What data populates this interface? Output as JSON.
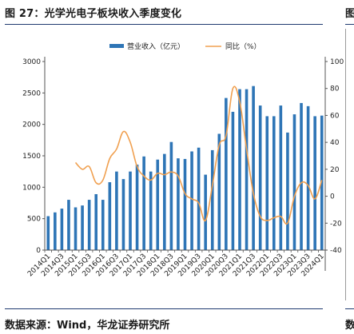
{
  "figure": {
    "title": "图 27：光学光电子板块收入季度变化",
    "next_title_fragment": "图",
    "source": "数据来源：Wind，华龙证券研究所",
    "next_source_fragment": "数"
  },
  "chart_data": {
    "type": "bar",
    "categories": [
      "2014Q1",
      "2014Q2",
      "2014Q3",
      "2014Q4",
      "2015Q1",
      "2015Q2",
      "2015Q3",
      "2015Q4",
      "2016Q1",
      "2016Q2",
      "2016Q3",
      "2016Q4",
      "2017Q1",
      "2017Q2",
      "2017Q3",
      "2017Q4",
      "2018Q1",
      "2018Q2",
      "2018Q3",
      "2018Q4",
      "2019Q1",
      "2019Q2",
      "2019Q3",
      "2019Q4",
      "2020Q1",
      "2020Q2",
      "2020Q3",
      "2020Q4",
      "2021Q1",
      "2021Q2",
      "2021Q3",
      "2021Q4",
      "2022Q1",
      "2022Q2",
      "2022Q3",
      "2022Q4",
      "2023Q1",
      "2023Q2",
      "2023Q3",
      "2023Q4",
      "2024Q1"
    ],
    "tick_labels": [
      "2014Q1",
      "2014Q3",
      "2015Q1",
      "2015Q3",
      "2016Q1",
      "2016Q3",
      "2017Q1",
      "2017Q3",
      "2018Q1",
      "2018Q3",
      "2019Q1",
      "2019Q3",
      "2020Q1",
      "2020Q3",
      "2021Q1",
      "2021Q3",
      "2022Q1",
      "2022Q3",
      "2023Q1",
      "2023Q3",
      "2024Q1"
    ],
    "series": [
      {
        "name": "营业收入（亿元）",
        "axis": "left",
        "kind": "bar",
        "color": "#2e75b6",
        "values": [
          540,
          600,
          660,
          800,
          680,
          710,
          800,
          890,
          800,
          1080,
          1250,
          1130,
          1250,
          1360,
          1490,
          1250,
          1440,
          1530,
          1720,
          1460,
          1450,
          1570,
          1630,
          1200,
          1590,
          1850,
          2420,
          2200,
          2560,
          2560,
          2610,
          2300,
          2130,
          2130,
          2300,
          1870,
          2160,
          2340,
          2290,
          2130,
          2140
        ]
      },
      {
        "name": "同比（%）",
        "axis": "right",
        "kind": "line",
        "color": "#f0a050",
        "values": [
          null,
          null,
          null,
          null,
          25,
          20,
          22,
          10,
          12,
          28,
          35,
          48,
          40,
          22,
          15,
          12,
          17,
          16,
          18,
          15,
          2,
          -2,
          -5,
          -18,
          8,
          38,
          45,
          80,
          70,
          35,
          2,
          -15,
          -18,
          -16,
          -15,
          -20,
          0,
          10,
          8,
          -2,
          12
        ]
      }
    ],
    "left_axis": {
      "min": 0,
      "max": 3000,
      "ticks": [
        0,
        500,
        1000,
        1500,
        2000,
        2500,
        3000
      ]
    },
    "right_axis": {
      "min": -40,
      "max": 100,
      "ticks": [
        -40,
        -20,
        0,
        20,
        40,
        60,
        80,
        100
      ]
    },
    "legend": {
      "position": "top-center"
    },
    "grid": false
  }
}
